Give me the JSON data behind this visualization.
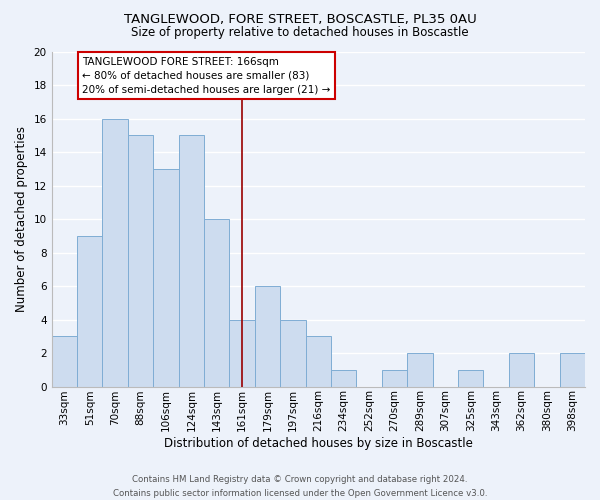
{
  "title": "TANGLEWOOD, FORE STREET, BOSCASTLE, PL35 0AU",
  "subtitle": "Size of property relative to detached houses in Boscastle",
  "xlabel": "Distribution of detached houses by size in Boscastle",
  "ylabel": "Number of detached properties",
  "bar_labels": [
    "33sqm",
    "51sqm",
    "70sqm",
    "88sqm",
    "106sqm",
    "124sqm",
    "143sqm",
    "161sqm",
    "179sqm",
    "197sqm",
    "216sqm",
    "234sqm",
    "252sqm",
    "270sqm",
    "289sqm",
    "307sqm",
    "325sqm",
    "343sqm",
    "362sqm",
    "380sqm",
    "398sqm"
  ],
  "bar_values": [
    3,
    9,
    16,
    15,
    13,
    15,
    10,
    4,
    6,
    4,
    3,
    1,
    0,
    1,
    2,
    0,
    1,
    0,
    2,
    0,
    2
  ],
  "bar_color": "#cddcef",
  "bar_edge_color": "#7fadd4",
  "vline_x_index": 7,
  "vline_color": "#990000",
  "annotation_title": "TANGLEWOOD FORE STREET: 166sqm",
  "annotation_line1": "← 80% of detached houses are smaller (83)",
  "annotation_line2": "20% of semi-detached houses are larger (21) →",
  "annotation_box_color": "#ffffff",
  "annotation_box_edge": "#cc0000",
  "ylim": [
    0,
    20
  ],
  "yticks": [
    0,
    2,
    4,
    6,
    8,
    10,
    12,
    14,
    16,
    18,
    20
  ],
  "footer_line1": "Contains HM Land Registry data © Crown copyright and database right 2024.",
  "footer_line2": "Contains public sector information licensed under the Open Government Licence v3.0.",
  "bg_color": "#edf2fa",
  "grid_color": "#ffffff",
  "title_fontsize": 9.5,
  "subtitle_fontsize": 8.5,
  "axis_label_fontsize": 8.5,
  "tick_fontsize": 7.5
}
